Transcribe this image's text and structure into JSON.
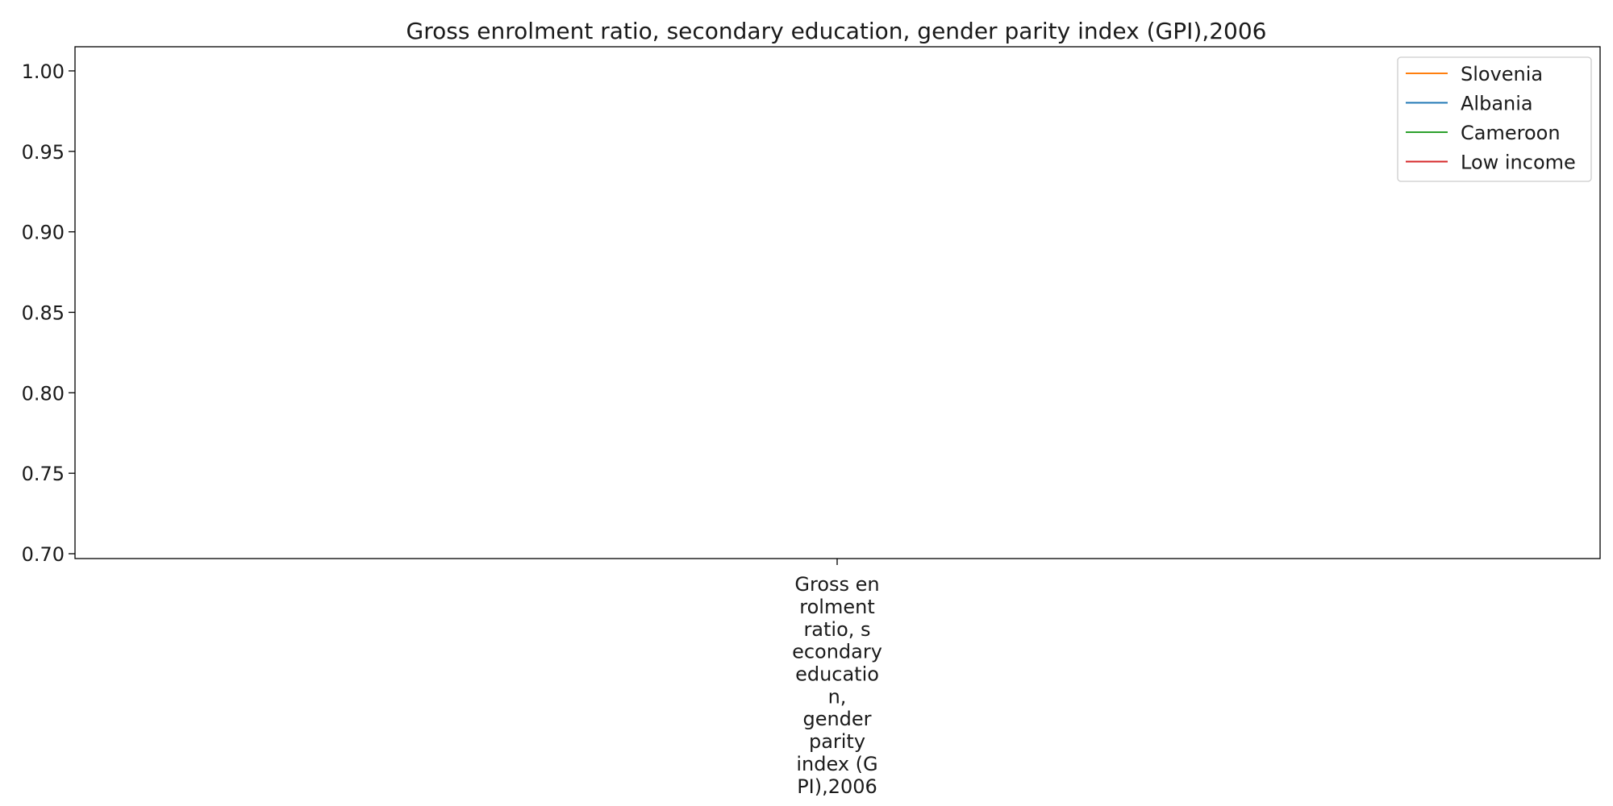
{
  "chart_data": {
    "type": "line",
    "title": "Gross enrolment ratio, secondary education, gender parity index (GPI),2006",
    "xlabel": "",
    "ylabel": "",
    "categories": [
      "Gross en\nrolment\nratio, s\necondary\neducatio\nn,\ngender\nparity\nindex (G\nPI),2006"
    ],
    "y_ticks": [
      "0.70",
      "0.75",
      "0.80",
      "0.85",
      "0.90",
      "0.95",
      "1.00"
    ],
    "ylim": [
      0.697,
      1.015
    ],
    "grid": false,
    "legend_position": "top-right",
    "series": [
      {
        "name": "Slovenia",
        "color": "#ff7f0e",
        "values": [
          null
        ]
      },
      {
        "name": "Albania",
        "color": "#1f77b4",
        "values": [
          null
        ]
      },
      {
        "name": "Cameroon",
        "color": "#2ca02c",
        "values": [
          null
        ]
      },
      {
        "name": "Low income",
        "color": "#d62728",
        "values": [
          null
        ]
      }
    ]
  }
}
